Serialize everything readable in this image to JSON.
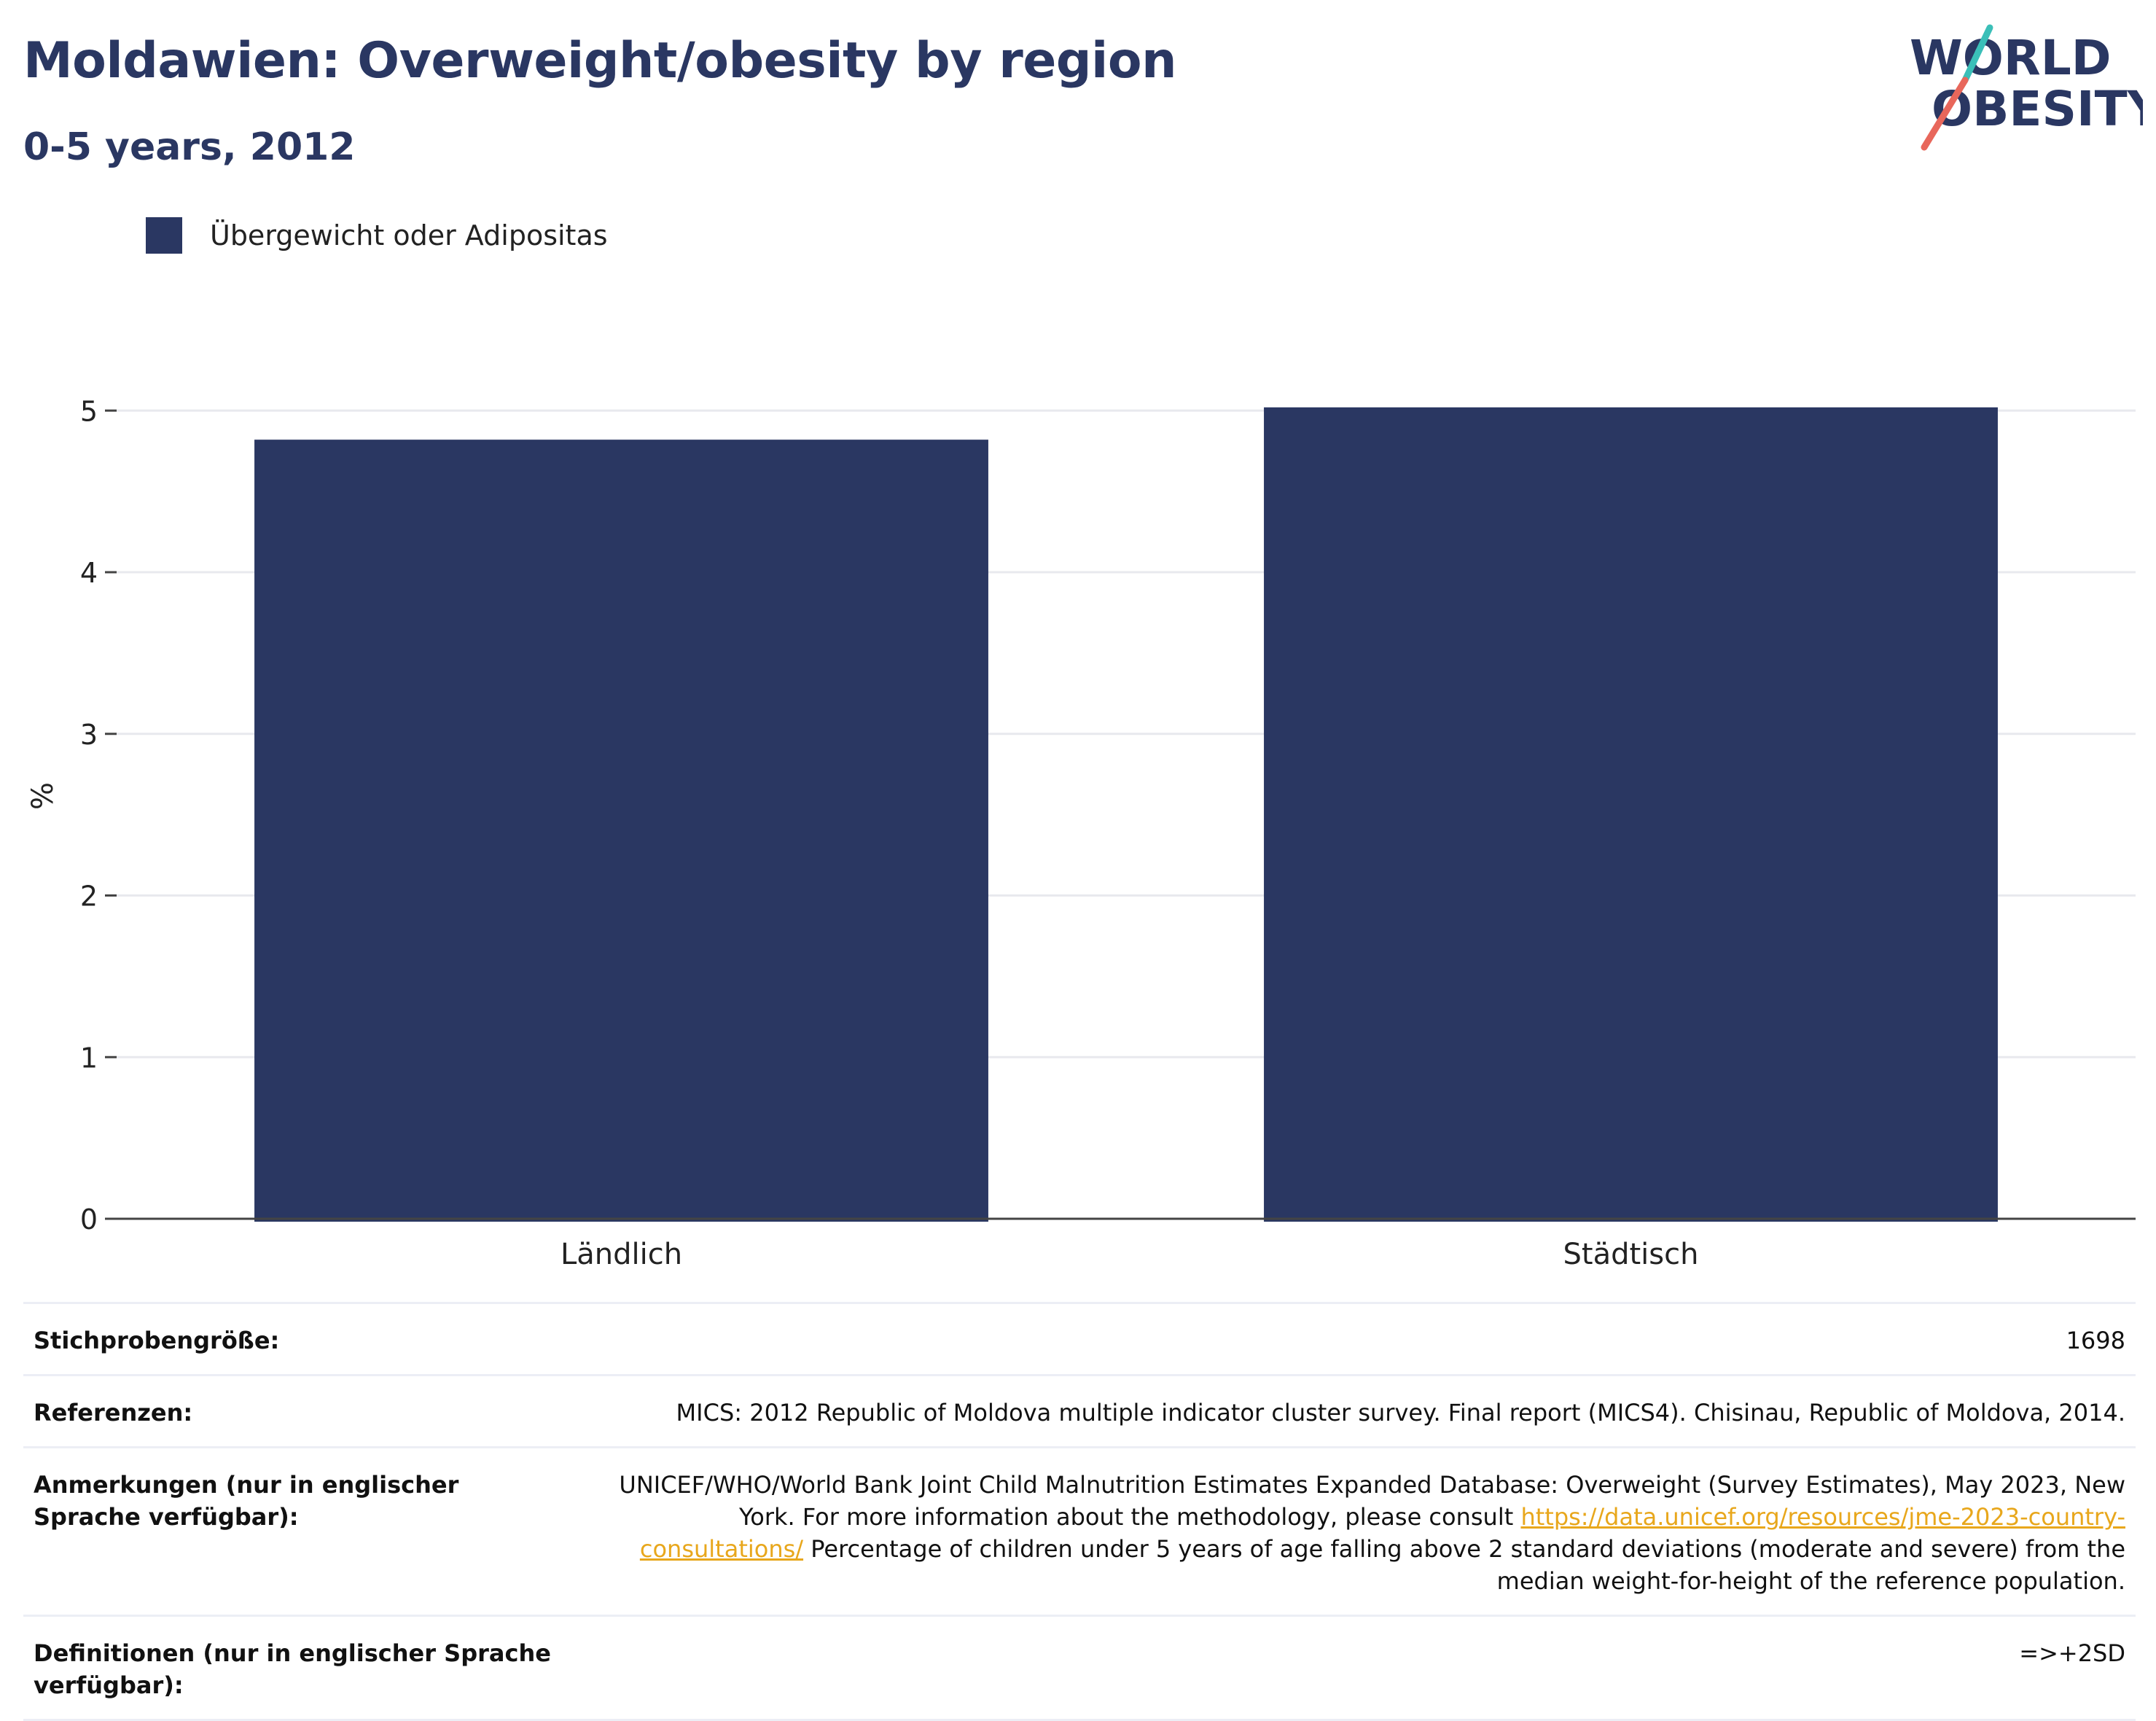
{
  "header": {
    "title": "Moldawien: Overweight/obesity by region",
    "subtitle": "0-5 years, 2012",
    "logo_line1": "WORLD",
    "logo_line2": "OBESITY"
  },
  "colors": {
    "bar": "#2a3762",
    "title": "#2a3762",
    "link": "#e8a71c",
    "logo_teal": "#3bbfb8",
    "logo_red": "#e8675b"
  },
  "chart_data": {
    "type": "bar",
    "categories": [
      "Ländlich",
      "Städtisch"
    ],
    "series": [
      {
        "name": "Übergewicht oder Adipositas",
        "values": [
          4.82,
          5.02
        ]
      }
    ],
    "ylabel": "%",
    "xlabel": "",
    "ylim": [
      0,
      5.15
    ],
    "yticks": [
      0,
      1,
      2,
      3,
      4,
      5
    ],
    "grid": true,
    "legend": "top-left"
  },
  "info": {
    "sample_size_label": "Stichprobengröße:",
    "sample_size_value": "1698",
    "references_label": "Referenzen:",
    "references_value": "MICS: 2012 Republic of Moldova multiple indicator cluster survey. Final report (MICS4). Chisinau, Republic of Moldova, 2014.",
    "notes_label": "Anmerkungen (nur in englischer Sprache verfügbar):",
    "notes_text_1": "UNICEF/WHO/World Bank Joint Child Malnutrition Estimates Expanded Database: Overweight (Survey Estimates), May 2023, New York. For more information about the methodology, please consult ",
    "notes_link": "https://data.unicef.org/resources/jme-2023-country-consultations/",
    "notes_text_2": " Percentage of children under 5 years of age falling above 2 standard deviations (moderate and severe) from the median weight-for-height of the reference population.",
    "definitions_label": "Definitionen (nur in englischer Sprache verfügbar):",
    "definitions_value": "=>+2SD"
  }
}
